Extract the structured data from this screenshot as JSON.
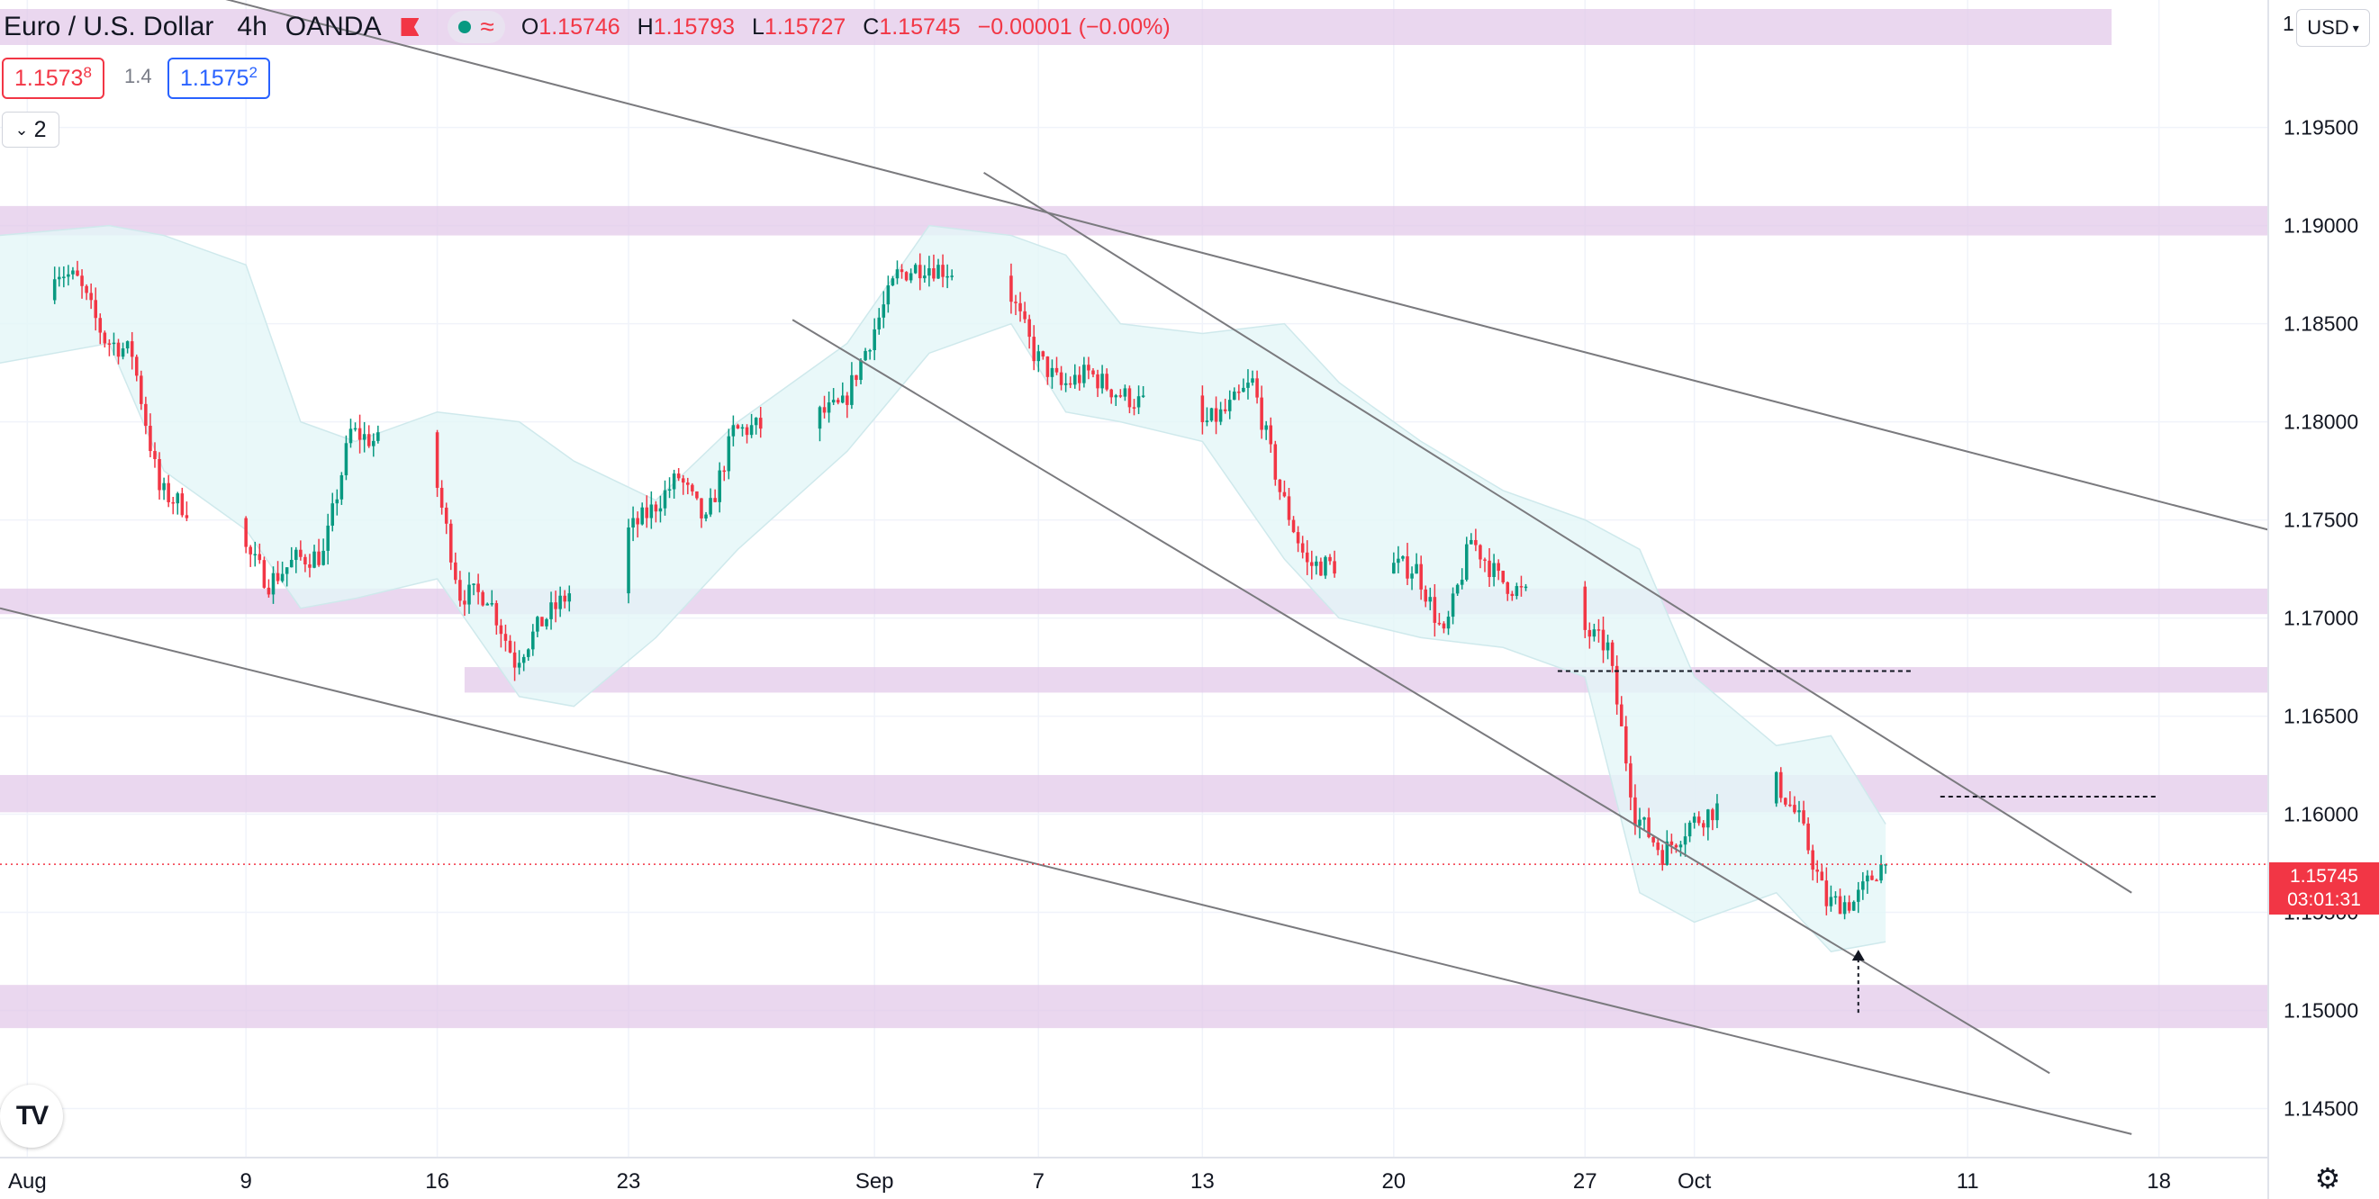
{
  "header": {
    "symbol": "Euro / U.S. Dollar",
    "timeframe": "4h",
    "broker": "OANDA",
    "flag_icon": "flag-icon",
    "indicator_icon": "wave-icon",
    "ohlc": {
      "o_label": "O",
      "o": "1.15746",
      "h_label": "H",
      "h": "1.15793",
      "l_label": "L",
      "l": "1.15727",
      "c_label": "C",
      "c": "1.15745",
      "change": "−0.00001 (−0.00%)"
    }
  },
  "trade": {
    "sell_main": "1.1573",
    "sell_sup": "8",
    "spread": "1.4",
    "buy_main": "1.1575",
    "buy_sup": "2"
  },
  "indicators_collapse": {
    "count": "2",
    "icon": "chevron-down-icon"
  },
  "currency_select": {
    "value": "USD",
    "icon": "chevron-down-icon"
  },
  "price_axis_top_clip": "1",
  "last_price_label": {
    "price": "1.15745",
    "countdown": "03:01:31"
  },
  "logo_text": "TV",
  "settings_icon": "gear-icon",
  "colors": {
    "up": "#089981",
    "down": "#f23645",
    "zone": "#e1c6e8",
    "band_fill": "#e3f6f7",
    "band_line": "#cfe9ec",
    "trendline": "#7a7a7e"
  },
  "chart_data": {
    "type": "candlestick",
    "symbol": "EUR/USD",
    "interval": "4h",
    "x_ticks": [
      "Aug",
      "9",
      "16",
      "23",
      "Sep",
      "7",
      "13",
      "20",
      "27",
      "Oct",
      "11",
      "18"
    ],
    "y_ticks": [
      "1.19500",
      "1.19000",
      "1.18500",
      "1.18000",
      "1.17500",
      "1.17000",
      "1.16500",
      "1.16000",
      "1.15500",
      "1.15000",
      "1.14500"
    ],
    "ylim": [
      1.1425,
      1.2015
    ],
    "time_range_days": [
      "2021-07-31",
      "2021-10-22"
    ],
    "last_price": 1.15745,
    "grid": true,
    "closes": [
      {
        "date": "2021-07-31",
        "close": 1.1862
      },
      {
        "date": "2021-08-02",
        "close": 1.188
      },
      {
        "date": "2021-08-03",
        "close": 1.1872
      },
      {
        "date": "2021-08-04",
        "close": 1.1842
      },
      {
        "date": "2021-08-05",
        "close": 1.1835
      },
      {
        "date": "2021-08-06",
        "close": 1.1765
      },
      {
        "date": "2021-08-09",
        "close": 1.1738
      },
      {
        "date": "2021-08-10",
        "close": 1.1718
      },
      {
        "date": "2021-08-11",
        "close": 1.173
      },
      {
        "date": "2021-08-12",
        "close": 1.1732
      },
      {
        "date": "2021-08-13",
        "close": 1.1795
      },
      {
        "date": "2021-08-16",
        "close": 1.1778
      },
      {
        "date": "2021-08-17",
        "close": 1.1712
      },
      {
        "date": "2021-08-18",
        "close": 1.1712
      },
      {
        "date": "2021-08-19",
        "close": 1.1678
      },
      {
        "date": "2021-08-20",
        "close": 1.1698
      },
      {
        "date": "2021-08-23",
        "close": 1.1742
      },
      {
        "date": "2021-08-24",
        "close": 1.1755
      },
      {
        "date": "2021-08-25",
        "close": 1.1772
      },
      {
        "date": "2021-08-26",
        "close": 1.1748
      },
      {
        "date": "2021-08-27",
        "close": 1.1795
      },
      {
        "date": "2021-08-30",
        "close": 1.1803
      },
      {
        "date": "2021-08-31",
        "close": 1.1808
      },
      {
        "date": "2021-09-01",
        "close": 1.1842
      },
      {
        "date": "2021-09-02",
        "close": 1.1875
      },
      {
        "date": "2021-09-03",
        "close": 1.188
      },
      {
        "date": "2021-09-06",
        "close": 1.187
      },
      {
        "date": "2021-09-07",
        "close": 1.1835
      },
      {
        "date": "2021-09-08",
        "close": 1.1818
      },
      {
        "date": "2021-09-09",
        "close": 1.1825
      },
      {
        "date": "2021-09-10",
        "close": 1.1815
      },
      {
        "date": "2021-09-13",
        "close": 1.1797
      },
      {
        "date": "2021-09-14",
        "close": 1.1805
      },
      {
        "date": "2021-09-15",
        "close": 1.182
      },
      {
        "date": "2021-09-16",
        "close": 1.1765
      },
      {
        "date": "2021-09-17",
        "close": 1.1727
      },
      {
        "date": "2021-09-20",
        "close": 1.1727
      },
      {
        "date": "2021-09-21",
        "close": 1.1725
      },
      {
        "date": "2021-09-22",
        "close": 1.169
      },
      {
        "date": "2021-09-23",
        "close": 1.174
      },
      {
        "date": "2021-09-24",
        "close": 1.172
      },
      {
        "date": "2021-09-27",
        "close": 1.1695
      },
      {
        "date": "2021-09-28",
        "close": 1.1685
      },
      {
        "date": "2021-09-29",
        "close": 1.16
      },
      {
        "date": "2021-09-30",
        "close": 1.158
      },
      {
        "date": "2021-10-01",
        "close": 1.1595
      },
      {
        "date": "2021-10-04",
        "close": 1.162
      },
      {
        "date": "2021-10-05",
        "close": 1.1597
      },
      {
        "date": "2021-10-06",
        "close": 1.1555
      },
      {
        "date": "2021-10-07",
        "close": 1.1555
      },
      {
        "date": "2021-10-08",
        "close": 1.15745
      }
    ],
    "bollinger": [
      {
        "date": "2021-07-31",
        "upper": 1.1895,
        "lower": 1.183
      },
      {
        "date": "2021-08-04",
        "upper": 1.19,
        "lower": 1.184
      },
      {
        "date": "2021-08-06",
        "upper": 1.1895,
        "lower": 1.1775
      },
      {
        "date": "2021-08-09",
        "upper": 1.188,
        "lower": 1.1745
      },
      {
        "date": "2021-08-11",
        "upper": 1.18,
        "lower": 1.1705
      },
      {
        "date": "2021-08-13",
        "upper": 1.179,
        "lower": 1.171
      },
      {
        "date": "2021-08-16",
        "upper": 1.1805,
        "lower": 1.172
      },
      {
        "date": "2021-08-19",
        "upper": 1.18,
        "lower": 1.166
      },
      {
        "date": "2021-08-21",
        "upper": 1.178,
        "lower": 1.1655
      },
      {
        "date": "2021-08-24",
        "upper": 1.176,
        "lower": 1.169
      },
      {
        "date": "2021-08-27",
        "upper": 1.18,
        "lower": 1.1735
      },
      {
        "date": "2021-08-31",
        "upper": 1.184,
        "lower": 1.1785
      },
      {
        "date": "2021-09-03",
        "upper": 1.19,
        "lower": 1.1835
      },
      {
        "date": "2021-09-06",
        "upper": 1.1895,
        "lower": 1.185
      },
      {
        "date": "2021-09-08",
        "upper": 1.1885,
        "lower": 1.1805
      },
      {
        "date": "2021-09-10",
        "upper": 1.185,
        "lower": 1.18
      },
      {
        "date": "2021-09-13",
        "upper": 1.1845,
        "lower": 1.179
      },
      {
        "date": "2021-09-16",
        "upper": 1.185,
        "lower": 1.173
      },
      {
        "date": "2021-09-18",
        "upper": 1.182,
        "lower": 1.17
      },
      {
        "date": "2021-09-21",
        "upper": 1.179,
        "lower": 1.169
      },
      {
        "date": "2021-09-24",
        "upper": 1.1765,
        "lower": 1.1685
      },
      {
        "date": "2021-09-27",
        "upper": 1.175,
        "lower": 1.167
      },
      {
        "date": "2021-09-29",
        "upper": 1.1735,
        "lower": 1.156
      },
      {
        "date": "2021-10-01",
        "upper": 1.167,
        "lower": 1.1545
      },
      {
        "date": "2021-10-04",
        "upper": 1.1635,
        "lower": 1.156
      },
      {
        "date": "2021-10-06",
        "upper": 1.164,
        "lower": 1.153
      },
      {
        "date": "2021-10-08",
        "upper": 1.1595,
        "lower": 1.1535
      }
    ],
    "zones": [
      {
        "from_date": "2021-07-31",
        "to_date": "2021-10-22",
        "y_top": 1.191,
        "y_bottom": 1.1895
      },
      {
        "from_date": "2021-07-31",
        "to_date": "2021-10-22",
        "y_top": 1.1715,
        "y_bottom": 1.1702
      },
      {
        "from_date": "2021-08-17",
        "to_date": "2021-10-22",
        "y_top": 1.1675,
        "y_bottom": 1.1662
      },
      {
        "from_date": "2021-07-31",
        "to_date": "2021-10-22",
        "y_top": 1.162,
        "y_bottom": 1.1601
      },
      {
        "from_date": "2021-07-31",
        "to_date": "2021-10-22",
        "y_top": 1.1513,
        "y_bottom": 1.1491
      }
    ],
    "trendlines": [
      {
        "from": [
          "2021-08-07",
          1.202
        ],
        "to": [
          "2021-10-22",
          1.1745
        ]
      },
      {
        "from": [
          "2021-07-31",
          1.1705
        ],
        "to": [
          "2021-10-17",
          1.1437
        ]
      },
      {
        "from": [
          "2021-09-05",
          1.1927
        ],
        "to": [
          "2021-10-17",
          1.156
        ]
      },
      {
        "from": [
          "2021-08-29",
          1.1852
        ],
        "to": [
          "2021-10-14",
          1.1468
        ]
      }
    ],
    "dashed_levels": [
      {
        "from_date": "2021-09-26",
        "to_date": "2021-10-09",
        "y": 1.1673
      },
      {
        "from_date": "2021-10-10",
        "to_date": "2021-10-18",
        "y": 1.1609
      }
    ],
    "arrow_marker": {
      "date": "2021-10-07",
      "from_y": 1.1508,
      "to_y": 1.153
    }
  }
}
